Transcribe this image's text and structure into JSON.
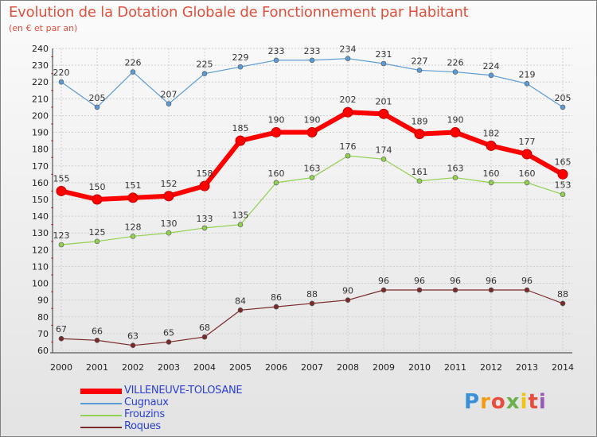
{
  "header": {
    "title": "Evolution de la Dotation Globale de Fonctionnement par Habitant",
    "subtitle": "(en € et par an)"
  },
  "logo": {
    "letters": [
      "P",
      "r",
      "o",
      "x",
      "i",
      "t",
      "i"
    ],
    "colors": [
      "#3a8fd8",
      "#f39c12",
      "#e74c3c",
      "#6ab04c",
      "#f1c40f",
      "#e74c3c",
      "#9b59b6"
    ]
  },
  "chart_data": {
    "type": "line",
    "x": [
      2000,
      2001,
      2002,
      2003,
      2004,
      2005,
      2006,
      2007,
      2008,
      2009,
      2010,
      2011,
      2012,
      2013,
      2014
    ],
    "ylim": [
      60,
      240
    ],
    "yticks": [
      60,
      70,
      80,
      90,
      100,
      110,
      120,
      130,
      140,
      150,
      160,
      170,
      180,
      190,
      200,
      210,
      220,
      230,
      240
    ],
    "grid": true,
    "legend_position": "bottom-left",
    "series": [
      {
        "name": "VILLENEUVE-TOLOSANE",
        "color": "#ff0000",
        "label_color": "#333333",
        "width": 6,
        "values": [
          155,
          150,
          151,
          152,
          158,
          185,
          190,
          190,
          202,
          201,
          189,
          190,
          182,
          177,
          165
        ]
      },
      {
        "name": "Cugnaux",
        "color": "#5b9bd5",
        "label_color": "#333333",
        "width": 1.2,
        "values": [
          220,
          205,
          226,
          207,
          225,
          229,
          233,
          233,
          234,
          231,
          227,
          226,
          224,
          219,
          205
        ]
      },
      {
        "name": "Frouzins",
        "color": "#92d050",
        "label_color": "#333333",
        "width": 1.2,
        "values": [
          123,
          125,
          128,
          130,
          133,
          135,
          160,
          163,
          176,
          174,
          161,
          163,
          160,
          160,
          153
        ]
      },
      {
        "name": "Roques",
        "color": "#7b2a2a",
        "label_color": "#333333",
        "width": 1.2,
        "values": [
          67,
          66,
          63,
          65,
          68,
          84,
          86,
          88,
          90,
          96,
          96,
          96,
          96,
          96,
          88
        ]
      }
    ]
  }
}
